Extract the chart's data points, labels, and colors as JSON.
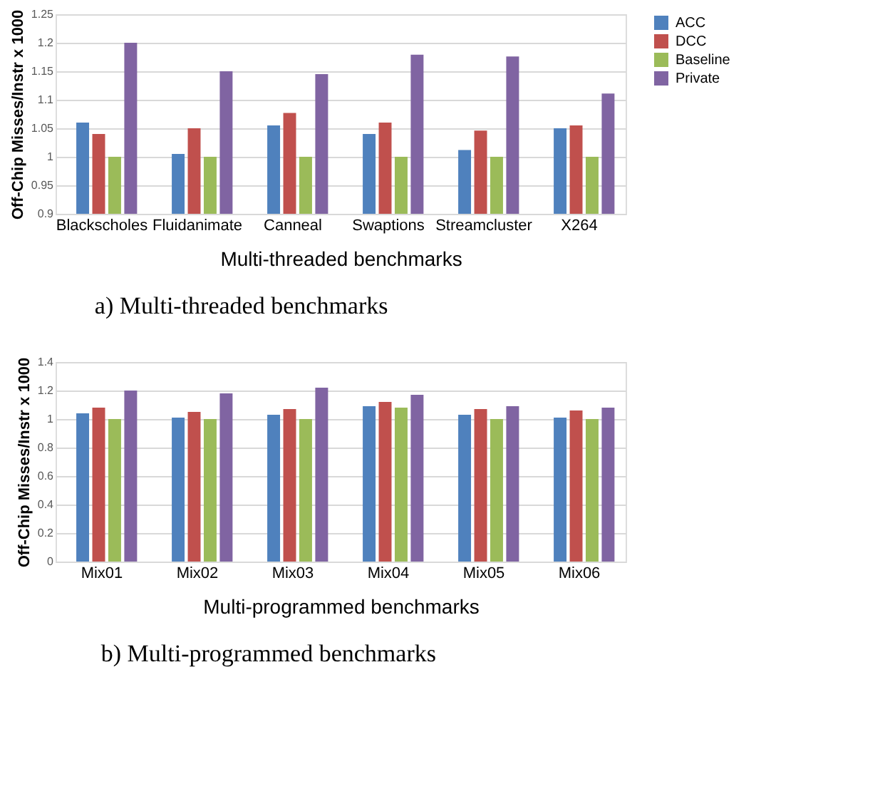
{
  "chart_data": [
    {
      "type": "bar",
      "xlabel": "Multi-threaded benchmarks",
      "ylabel": "Off-Chip Misses/Instr x 1000",
      "categories": [
        "Blackscholes",
        "Fluidanimate",
        "Canneal",
        "Swaptions",
        "Streamcluster",
        "X264"
      ],
      "series": [
        {
          "name": "ACC",
          "color": "#4f81bd",
          "values": [
            1.06,
            1.005,
            1.055,
            1.04,
            1.012,
            1.05
          ]
        },
        {
          "name": "DCC",
          "color": "#c0504d",
          "values": [
            1.04,
            1.05,
            1.077,
            1.06,
            1.046,
            1.055
          ]
        },
        {
          "name": "Baseline",
          "color": "#9bbb59",
          "values": [
            1.0,
            1.0,
            1.0,
            1.0,
            1.0,
            1.0
          ]
        },
        {
          "name": "Private",
          "color": "#8064a2",
          "values": [
            1.2,
            1.15,
            1.145,
            1.179,
            1.176,
            1.111
          ]
        }
      ],
      "ylim": [
        0.9,
        1.25
      ],
      "yticks": [
        0.9,
        0.95,
        1,
        1.05,
        1.1,
        1.15,
        1.2,
        1.25
      ],
      "grid": "y",
      "legend": "right",
      "annotations": [
        "a) Multi-threaded benchmarks"
      ]
    },
    {
      "type": "bar",
      "xlabel": "Multi-programmed benchmarks",
      "ylabel": "Off-Chip Misses/Instr x 1000",
      "categories": [
        "Mix01",
        "Mix02",
        "Mix03",
        "Mix04",
        "Mix05",
        "Mix06"
      ],
      "series": [
        {
          "name": "ACC",
          "color": "#4f81bd",
          "values": [
            1.04,
            1.01,
            1.03,
            1.09,
            1.03,
            1.01
          ]
        },
        {
          "name": "DCC",
          "color": "#c0504d",
          "values": [
            1.08,
            1.05,
            1.07,
            1.12,
            1.07,
            1.06
          ]
        },
        {
          "name": "Baseline",
          "color": "#9bbb59",
          "values": [
            1.0,
            1.0,
            1.0,
            1.08,
            1.0,
            1.0
          ]
        },
        {
          "name": "Private",
          "color": "#8064a2",
          "values": [
            1.2,
            1.18,
            1.22,
            1.17,
            1.09,
            1.08
          ]
        }
      ],
      "ylim": [
        0,
        1.4
      ],
      "yticks": [
        0,
        0.2,
        0.4,
        0.6,
        0.8,
        1,
        1.2,
        1.4
      ],
      "grid": "y",
      "legend": "right",
      "annotations": [
        "b) Multi-programmed benchmarks"
      ]
    }
  ]
}
